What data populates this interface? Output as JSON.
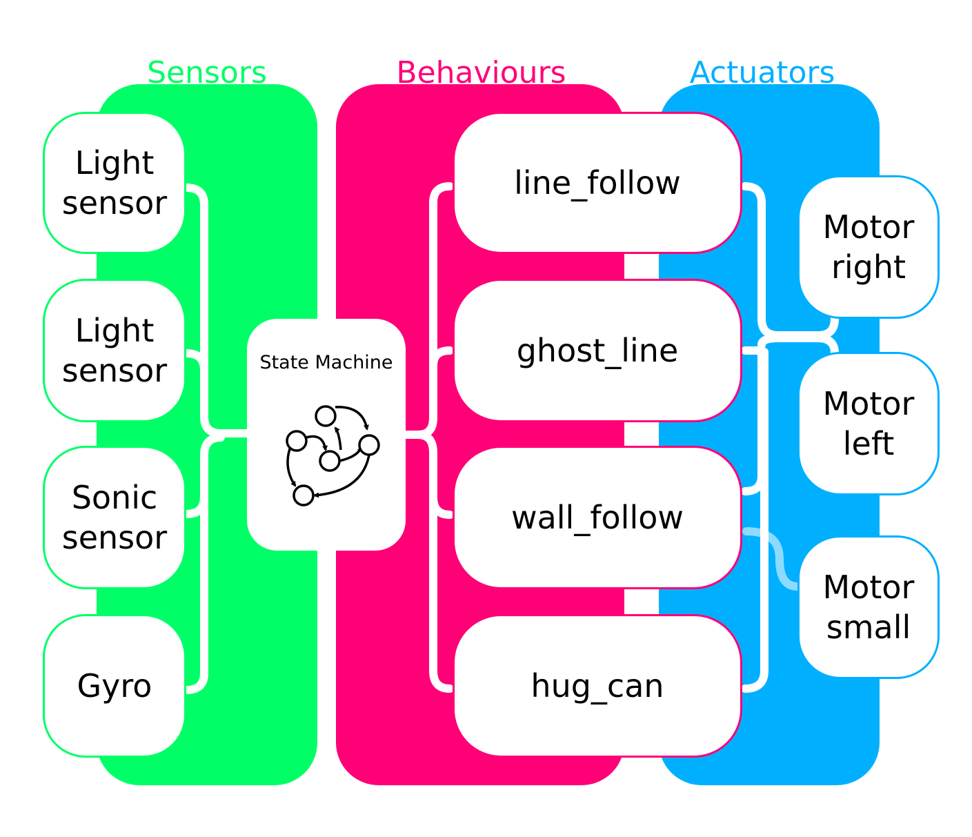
{
  "colors": {
    "sensors": "#00ff66",
    "behaviours": "#ff0077",
    "actuators": "#00b0ff",
    "box_fill": "#ffffff",
    "text": "#000000"
  },
  "sensors": {
    "title": "Sensors",
    "items": [
      {
        "label": [
          "Light",
          "sensor"
        ]
      },
      {
        "label": [
          "Light",
          "sensor"
        ]
      },
      {
        "label": [
          "Sonic",
          "sensor"
        ]
      },
      {
        "label": [
          "Gyro"
        ]
      }
    ]
  },
  "state_machine": {
    "label": "State Machine",
    "icon": "state-machine-graph-icon"
  },
  "behaviours": {
    "title": "Behaviours",
    "items": [
      {
        "label": [
          "line_follow"
        ]
      },
      {
        "label": [
          "ghost_line"
        ]
      },
      {
        "label": [
          "wall_follow"
        ]
      },
      {
        "label": [
          "hug_can"
        ]
      }
    ]
  },
  "actuators": {
    "title": "Actuators",
    "items": [
      {
        "label": [
          "Motor",
          "right"
        ]
      },
      {
        "label": [
          "Motor",
          "left"
        ]
      },
      {
        "label": [
          "Motor",
          "small"
        ]
      }
    ]
  }
}
